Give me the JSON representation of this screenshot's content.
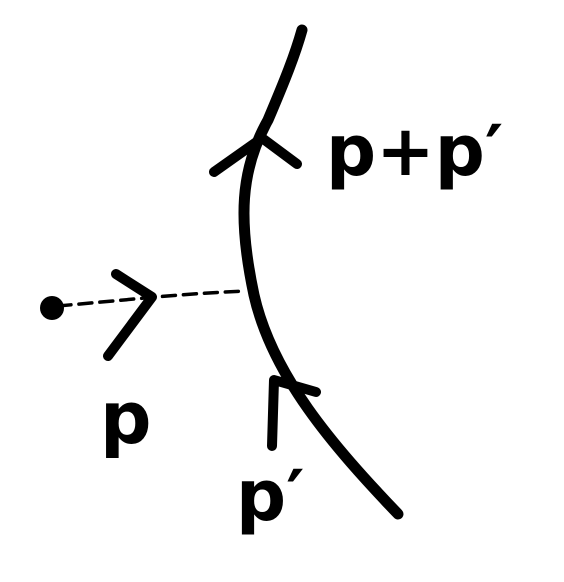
{
  "diagram": {
    "labels": {
      "incoming": "p",
      "initial": "p′",
      "outgoing": "p+p′"
    },
    "colors": {
      "ink": "#000000",
      "background": "#ffffff"
    },
    "elements": {
      "main_line": "fermion-line",
      "emission_line": "dashed-boson-line",
      "source": "source-vertex-dot"
    }
  }
}
